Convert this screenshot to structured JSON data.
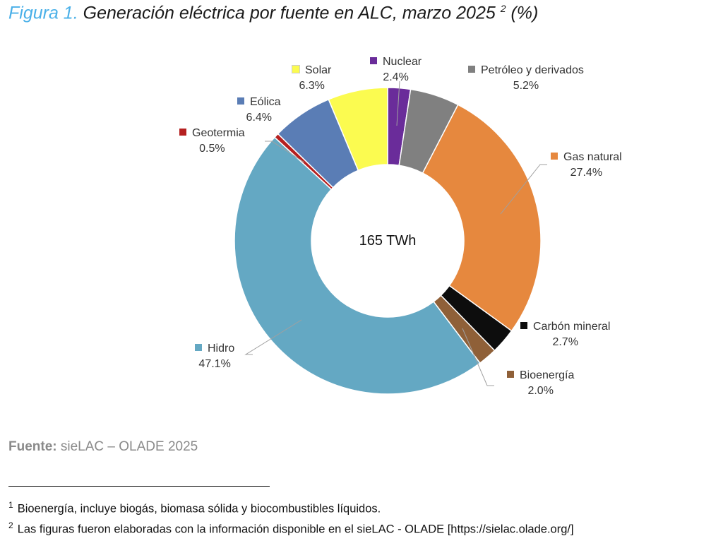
{
  "title": {
    "figure": "Figura 1.",
    "text": "Generación eléctrica por fuente en ALC, marzo 2025",
    "superscript": "2",
    "unit": "(%)"
  },
  "chart_data": {
    "type": "pie",
    "donut": true,
    "center_label": "165 TWh",
    "start": "top, clockwise",
    "slices": [
      {
        "name": "Nuclear",
        "value": 2.4,
        "label": "2.4%",
        "color": "#6a2c9a"
      },
      {
        "name": "Petróleo y derivados",
        "value": 5.2,
        "label": "5.2%",
        "color": "#808080"
      },
      {
        "name": "Gas natural",
        "value": 27.4,
        "label": "27.4%",
        "color": "#e6883e"
      },
      {
        "name": "Carbón mineral",
        "value": 2.7,
        "label": "2.7%",
        "color": "#0d0d0d"
      },
      {
        "name": "Bioenergía",
        "value": 2.0,
        "label": "2.0%",
        "color": "#8f6038"
      },
      {
        "name": "Hidro",
        "value": 47.1,
        "label": "47.1%",
        "color": "#64a8c3"
      },
      {
        "name": "Geotermia",
        "value": 0.5,
        "label": "0.5%",
        "color": "#b52020"
      },
      {
        "name": "Eólica",
        "value": 6.4,
        "label": "6.4%",
        "color": "#5a7db5"
      },
      {
        "name": "Solar",
        "value": 6.3,
        "label": "6.3%",
        "color": "#fbfb50"
      }
    ]
  },
  "source": {
    "label": "Fuente:",
    "text": "sieLAC – OLADE 2025"
  },
  "footnotes": [
    {
      "num": "1",
      "text": "Bioenergía, incluye biogás, biomasa sólida y biocombustibles líquidos."
    },
    {
      "num": "2",
      "text": "Las figuras fueron elaboradas con la información disponible en el sieLAC - OLADE [https://sielac.olade.org/]"
    }
  ]
}
